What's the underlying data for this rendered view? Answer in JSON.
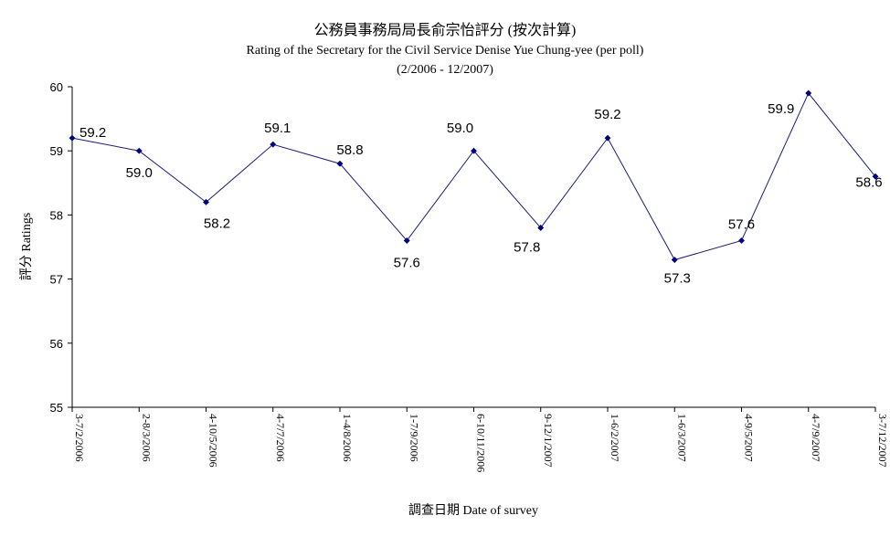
{
  "chart_data": {
    "type": "line",
    "title": "公務員事務局局長俞宗怡評分 (按次計算)",
    "subtitle": "Rating of the Secretary for the Civil Service Denise Yue Chung-yee (per poll)",
    "subtitle2": "(2/2006 - 12/2007)",
    "xlabel": "調查日期 Date of survey",
    "ylabel": "評分 Ratings",
    "ylim": [
      55,
      60
    ],
    "yticks": [
      55,
      56,
      57,
      58,
      59,
      60
    ],
    "categories": [
      "3-7/2/2006",
      "2-8/3/2006",
      "4-10/5/2006",
      "4-7/7/2006",
      "1-4/8/2006",
      "1-7/9/2006",
      "6-10/11/2006",
      "9-12/1/2007",
      "1-6/2/2007",
      "1-6/3/2007",
      "4-9/5/2007",
      "4-7/9/2007",
      "3-7/12/2007"
    ],
    "values": [
      59.2,
      59.0,
      58.2,
      59.1,
      58.8,
      57.6,
      59.0,
      57.8,
      59.2,
      57.3,
      57.6,
      59.9,
      58.6
    ],
    "data_labels": [
      "59.2",
      "59.0",
      "58.2",
      "59.1",
      "58.8",
      "57.6",
      "59.0",
      "57.8",
      "59.2",
      "57.3",
      "57.6",
      "59.9",
      "58.6"
    ],
    "line_color": "#1a1a7a",
    "marker_color": "#000080",
    "grid": false,
    "legend": "none"
  }
}
